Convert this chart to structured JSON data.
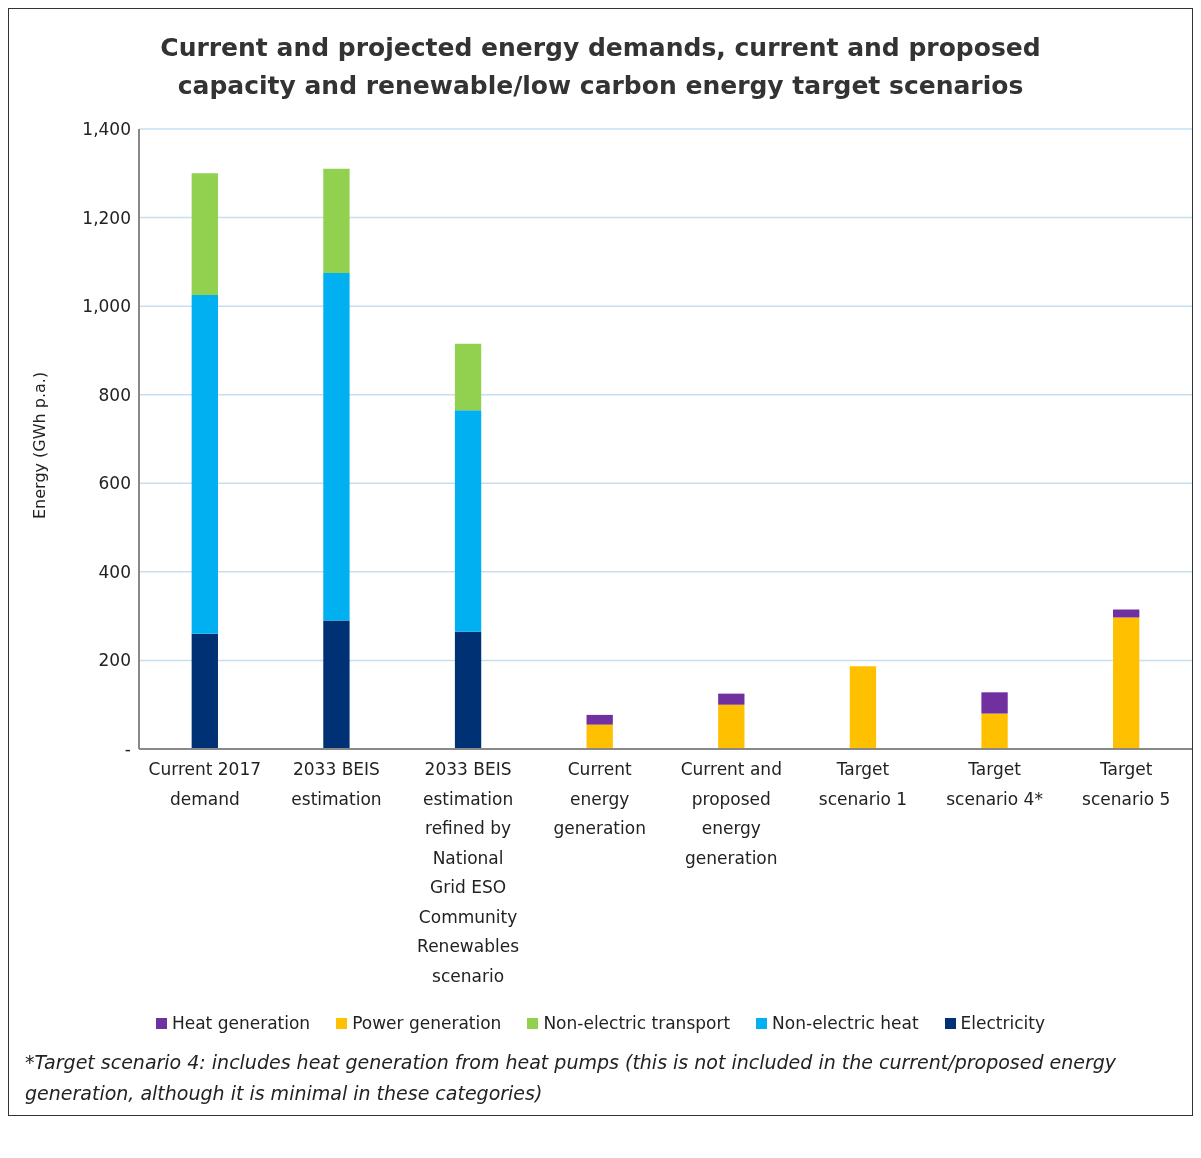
{
  "chart_data": {
    "type": "bar",
    "title": "Current and projected energy demands, current and proposed capacity and renewable/low carbon energy target scenarios",
    "ylabel": "Energy (GWh p.a.)",
    "categories": [
      "Current 2017 demand",
      "2033 BEIS estimation",
      "2033 BEIS estimation refined by National Grid ESO Community Renewables scenario",
      "Current energy generation",
      "Current and proposed energy generation",
      "Target scenario 1",
      "Target scenario 4*",
      "Target scenario 5"
    ],
    "stacked": true,
    "series": [
      {
        "name": "Electricity",
        "color": "#003174",
        "values": [
          260,
          290,
          265,
          null,
          null,
          null,
          null,
          null
        ]
      },
      {
        "name": "Non-electric heat",
        "color": "#00b0f0",
        "values": [
          765,
          785,
          500,
          null,
          null,
          null,
          null,
          null
        ]
      },
      {
        "name": "Non-electric transport",
        "color": "#92d050",
        "values": [
          275,
          235,
          150,
          null,
          null,
          null,
          null,
          null
        ]
      },
      {
        "name": "Power generation",
        "color": "#ffc000",
        "values": [
          null,
          null,
          null,
          55,
          100,
          187,
          80,
          297
        ]
      },
      {
        "name": "Heat generation",
        "color": "#7030a0",
        "values": [
          null,
          null,
          null,
          22,
          25,
          null,
          48,
          18
        ]
      }
    ],
    "ylim": [
      0,
      1400
    ],
    "yticks": [
      {
        "value": 0,
        "label": "-"
      },
      {
        "value": 200,
        "label": "200"
      },
      {
        "value": 400,
        "label": "400"
      },
      {
        "value": 600,
        "label": "600"
      },
      {
        "value": 800,
        "label": "800"
      },
      {
        "value": 1000,
        "label": "1,000"
      },
      {
        "value": 1200,
        "label": "1,200"
      },
      {
        "value": 1400,
        "label": "1,400"
      }
    ],
    "grid": "y",
    "legend": "bottom",
    "annotations": [
      "*Target scenario 4: includes heat generation from heat pumps (this is not included in the current/proposed energy generation, although it is minimal in these categories)"
    ]
  }
}
